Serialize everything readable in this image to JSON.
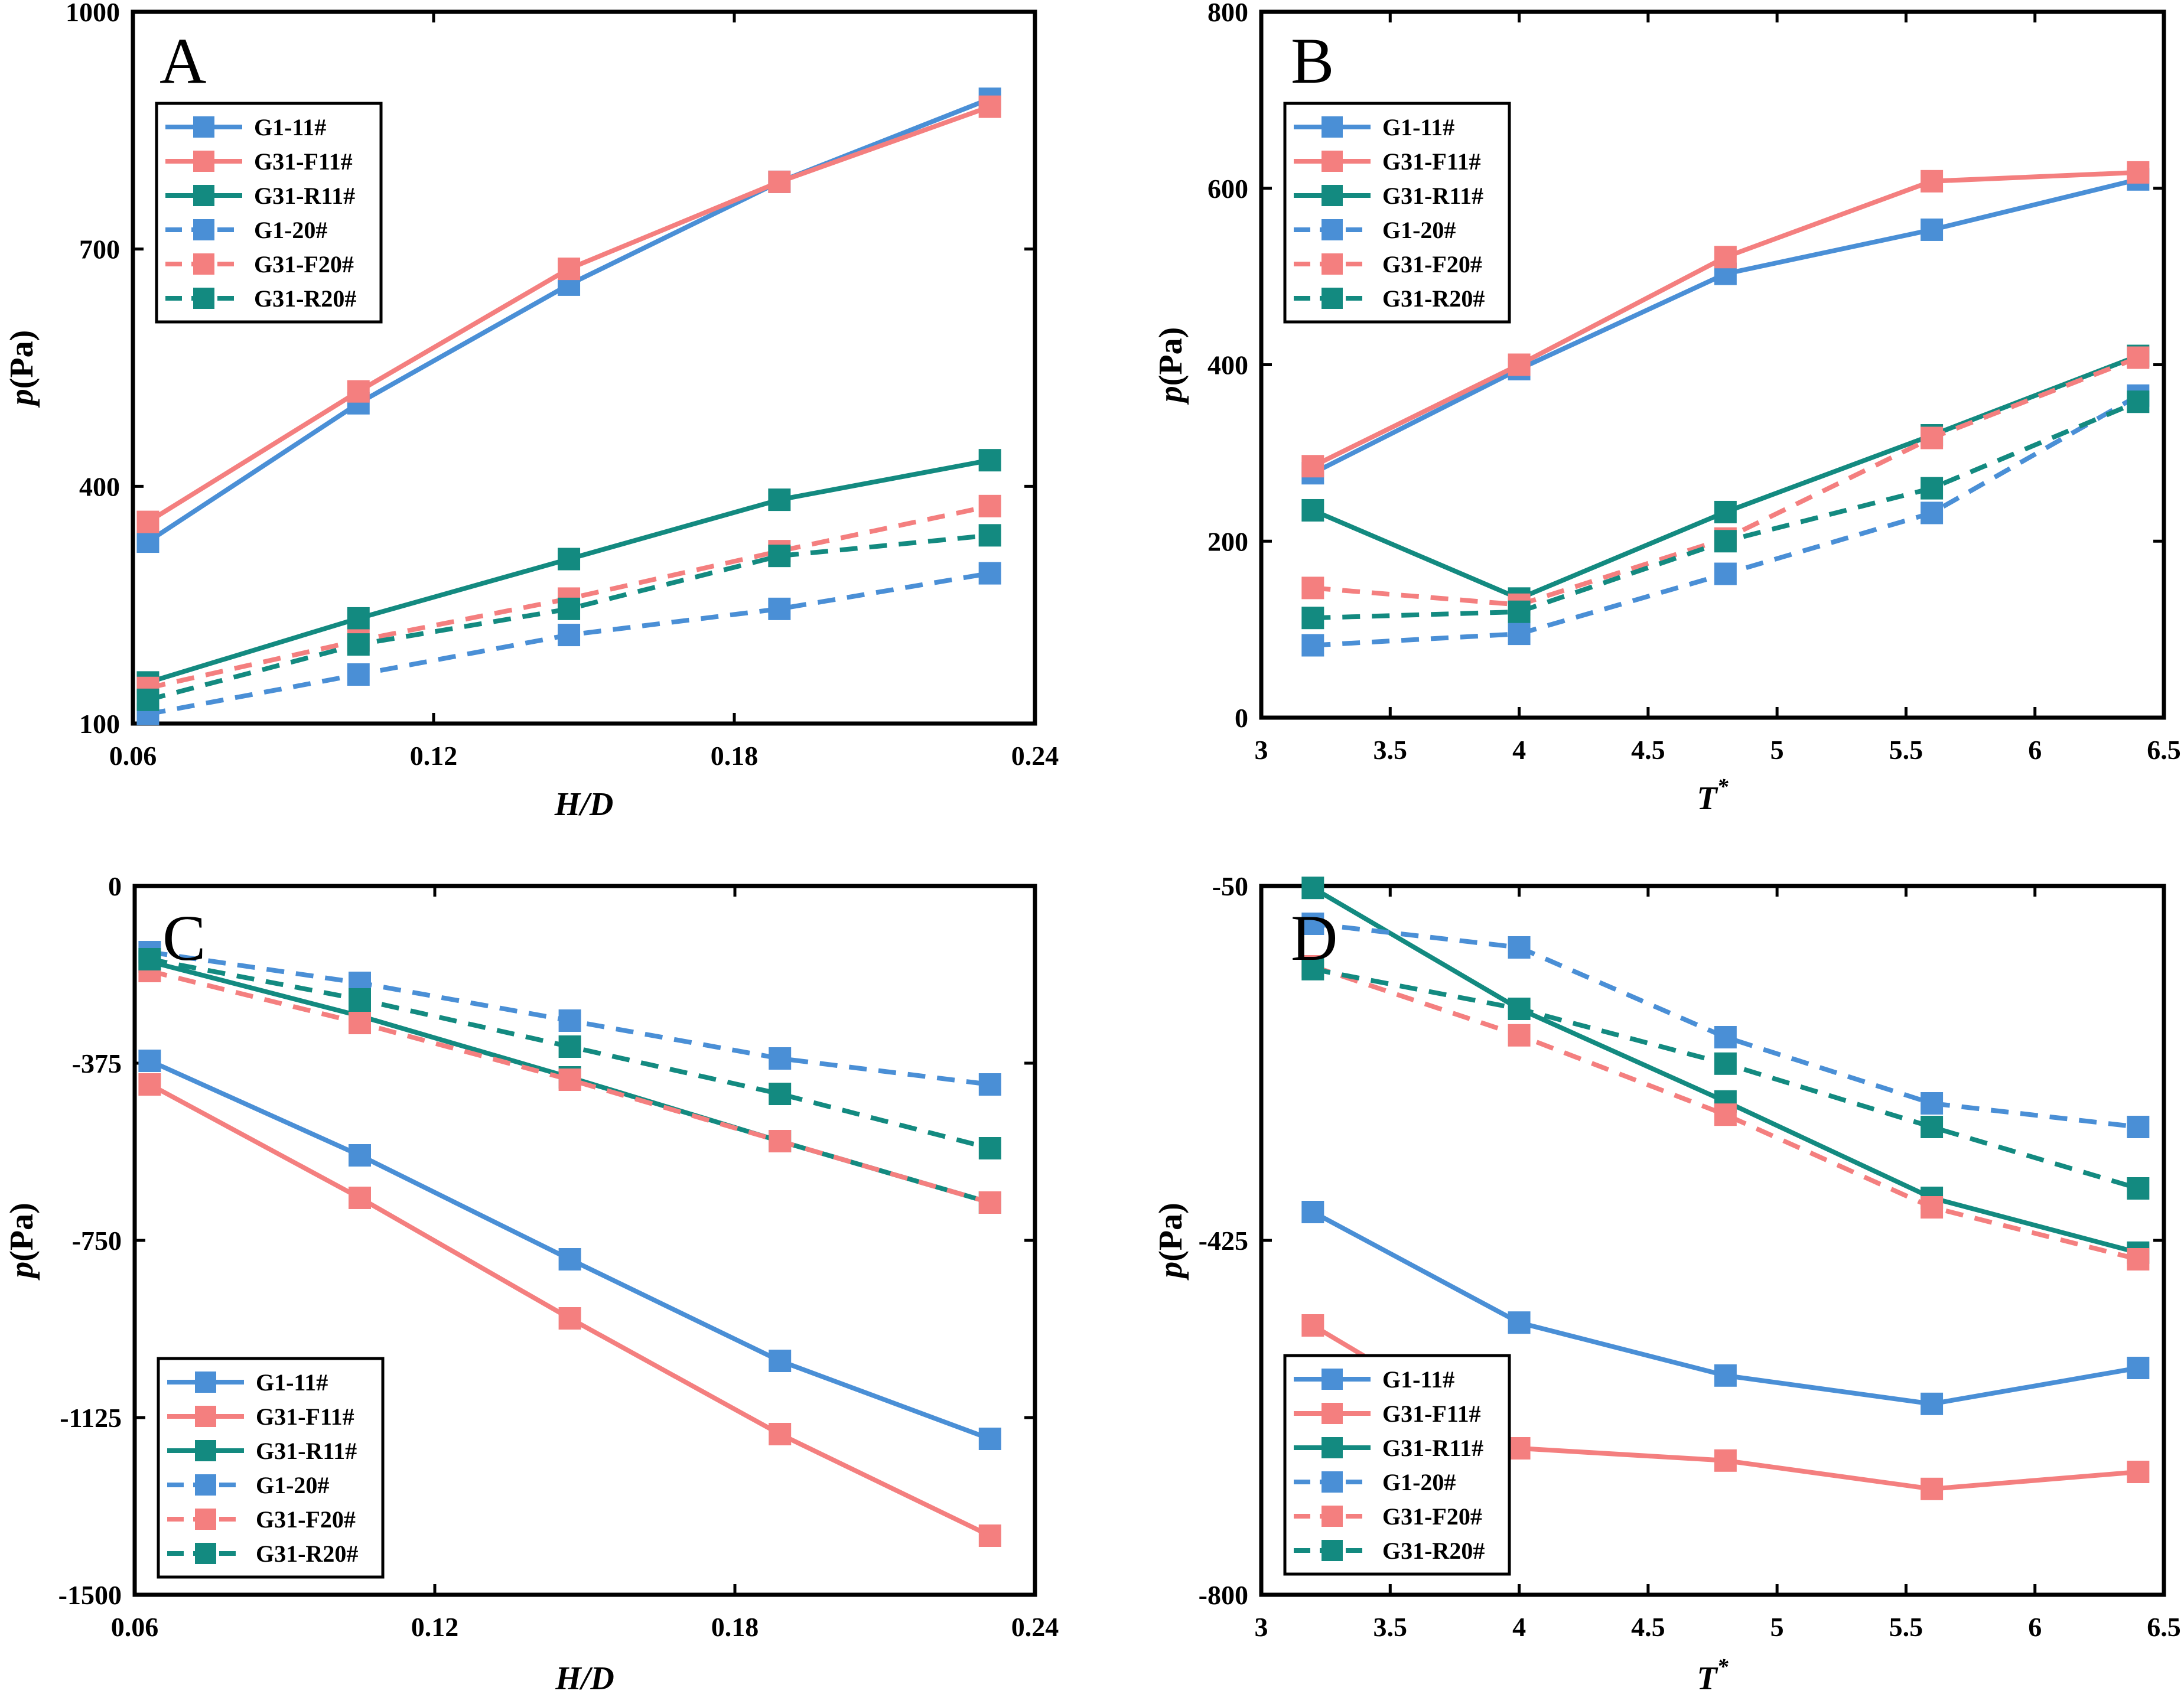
{
  "colors": {
    "G1": "#4a8fd6",
    "G31F": "#f47f7f",
    "G31R": "#138a80"
  },
  "chart_data": [
    {
      "panel": "A",
      "type": "line",
      "xlabel": "H/D",
      "ylabel": "p(Pa)",
      "xlim": [
        0.06,
        0.24
      ],
      "ylim": [
        100,
        1000
      ],
      "xticks": [
        0.06,
        0.12,
        0.18,
        0.24
      ],
      "xtick_labels": [
        "0.06",
        "0.12",
        "0.18",
        "0.24"
      ],
      "yticks": [
        100,
        400,
        700,
        1000
      ],
      "ytick_labels": [
        "100",
        "400",
        "700",
        "1000"
      ],
      "legend_position": "top-left",
      "x": [
        0.063,
        0.105,
        0.147,
        0.189,
        0.231
      ],
      "series": [
        {
          "name": "G1-11#",
          "style": "solid",
          "color_key": "G1",
          "values": [
            330,
            505,
            655,
            785,
            890
          ]
        },
        {
          "name": "G31-F11#",
          "style": "solid",
          "color_key": "G31F",
          "values": [
            355,
            520,
            675,
            785,
            880
          ]
        },
        {
          "name": "G31-R11#",
          "style": "solid",
          "color_key": "G31R",
          "values": [
            152,
            233,
            308,
            383,
            433
          ]
        },
        {
          "name": "G1-20#",
          "style": "dashed",
          "color_key": "G1",
          "values": [
            112,
            162,
            212,
            245,
            290
          ]
        },
        {
          "name": "G31-F20#",
          "style": "dashed",
          "color_key": "G31F",
          "values": [
            145,
            205,
            258,
            318,
            375
          ]
        },
        {
          "name": "G31-R20#",
          "style": "dashed",
          "color_key": "G31R",
          "values": [
            130,
            200,
            245,
            312,
            338
          ]
        }
      ]
    },
    {
      "panel": "B",
      "type": "line",
      "xlabel": "T",
      "xlabel_sup": "*",
      "ylabel": "p(Pa)",
      "xlim": [
        3,
        6.5
      ],
      "ylim": [
        0,
        800
      ],
      "xticks": [
        3,
        3.5,
        4,
        4.5,
        5,
        5.5,
        6,
        6.5
      ],
      "xtick_labels": [
        "3",
        "3.5",
        "4",
        "4.5",
        "5",
        "5.5",
        "6",
        "6.5"
      ],
      "yticks": [
        0,
        200,
        400,
        600,
        800
      ],
      "ytick_labels": [
        "0",
        "200",
        "400",
        "600",
        "800"
      ],
      "legend_position": "top-left",
      "x": [
        3.2,
        4.0,
        4.8,
        5.6,
        6.4
      ],
      "series": [
        {
          "name": "G1-11#",
          "style": "solid",
          "color_key": "G1",
          "values": [
            277,
            395,
            503,
            553,
            610
          ]
        },
        {
          "name": "G31-F11#",
          "style": "solid",
          "color_key": "G31F",
          "values": [
            285,
            400,
            522,
            608,
            618
          ]
        },
        {
          "name": "G31-R11#",
          "style": "solid",
          "color_key": "G31R",
          "values": [
            235,
            135,
            233,
            320,
            410
          ]
        },
        {
          "name": "G1-20#",
          "style": "dashed",
          "color_key": "G1",
          "values": [
            82,
            95,
            163,
            232,
            365
          ]
        },
        {
          "name": "G31-F20#",
          "style": "dashed",
          "color_key": "G31F",
          "values": [
            147,
            128,
            203,
            317,
            408
          ]
        },
        {
          "name": "G31-R20#",
          "style": "dashed",
          "color_key": "G31R",
          "values": [
            113,
            120,
            200,
            260,
            358
          ]
        }
      ]
    },
    {
      "panel": "C",
      "type": "line",
      "xlabel": "H/D",
      "ylabel": "p(Pa)",
      "xlim": [
        0.06,
        0.24
      ],
      "ylim": [
        -1500,
        0
      ],
      "xticks": [
        0.06,
        0.12,
        0.18,
        0.24
      ],
      "xtick_labels": [
        "0.06",
        "0.12",
        "0.18",
        "0.24"
      ],
      "yticks": [
        -1500,
        -1125,
        -750,
        -375,
        0
      ],
      "ytick_labels": [
        "-1500",
        "-1125",
        "-750",
        "-375",
        "0"
      ],
      "legend_position": "bottom-left",
      "x": [
        0.063,
        0.105,
        0.147,
        0.189,
        0.231
      ],
      "series": [
        {
          "name": "G1-11#",
          "style": "solid",
          "color_key": "G1",
          "values": [
            -370,
            -570,
            -790,
            -1005,
            -1170
          ]
        },
        {
          "name": "G31-F11#",
          "style": "solid",
          "color_key": "G31F",
          "values": [
            -420,
            -660,
            -915,
            -1160,
            -1375
          ]
        },
        {
          "name": "G31-R11#",
          "style": "solid",
          "color_key": "G31R",
          "values": [
            -160,
            -275,
            -405,
            -540,
            -670
          ]
        },
        {
          "name": "G1-20#",
          "style": "dashed",
          "color_key": "G1",
          "values": [
            -140,
            -205,
            -285,
            -365,
            -420
          ]
        },
        {
          "name": "G31-F20#",
          "style": "dashed",
          "color_key": "G31F",
          "values": [
            -180,
            -290,
            -410,
            -540,
            -670
          ]
        },
        {
          "name": "G31-R20#",
          "style": "dashed",
          "color_key": "G31R",
          "values": [
            -155,
            -240,
            -340,
            -440,
            -555
          ]
        }
      ]
    },
    {
      "panel": "D",
      "type": "line",
      "xlabel": "T",
      "xlabel_sup": "*",
      "ylabel": "p(Pa)",
      "xlim": [
        3,
        6.5
      ],
      "ylim": [
        -800,
        -50
      ],
      "xticks": [
        3,
        3.5,
        4,
        4.5,
        5,
        5.5,
        6,
        6.5
      ],
      "xtick_labels": [
        "3",
        "3.5",
        "4",
        "4.5",
        "5",
        "5.5",
        "6",
        "6.5"
      ],
      "yticks": [
        -800,
        -425,
        -50
      ],
      "ytick_labels": [
        "-800",
        "-425",
        "-50"
      ],
      "legend_position": "bottom-left",
      "x": [
        3.2,
        4.0,
        4.8,
        5.6,
        6.4
      ],
      "series": [
        {
          "name": "G1-11#",
          "style": "solid",
          "color_key": "G1",
          "values": [
            -395,
            -512,
            -568,
            -598,
            -560
          ]
        },
        {
          "name": "G31-F11#",
          "style": "solid",
          "color_key": "G31F",
          "values": [
            -515,
            -645,
            -658,
            -688,
            -670
          ]
        },
        {
          "name": "G31-R11#",
          "style": "solid",
          "color_key": "G31R",
          "values": [
            -52,
            -180,
            -278,
            -380,
            -438
          ]
        },
        {
          "name": "G1-20#",
          "style": "dashed",
          "color_key": "G1",
          "values": [
            -90,
            -115,
            -210,
            -280,
            -305
          ]
        },
        {
          "name": "G31-F20#",
          "style": "dashed",
          "color_key": "G31F",
          "values": [
            -135,
            -208,
            -292,
            -390,
            -445
          ]
        },
        {
          "name": "G31-R20#",
          "style": "dashed",
          "color_key": "G31R",
          "values": [
            -138,
            -180,
            -238,
            -305,
            -370
          ]
        }
      ]
    }
  ]
}
